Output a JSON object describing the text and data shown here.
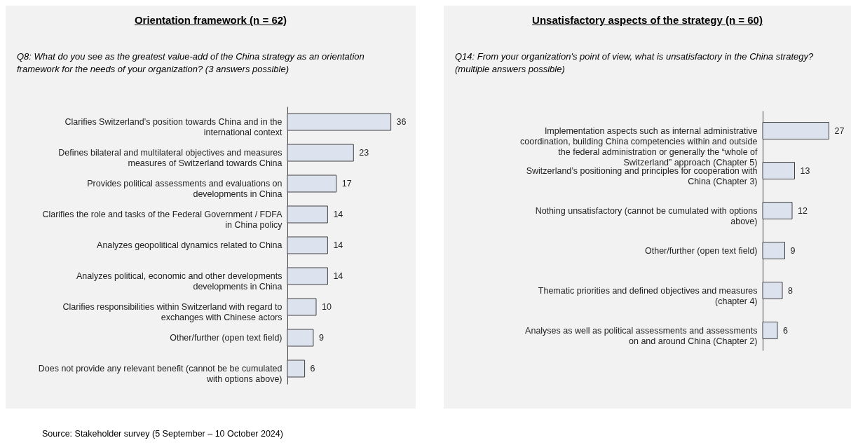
{
  "chart_data": [
    {
      "type": "bar",
      "orientation": "horizontal",
      "title": "Orientation framework (n = 62)",
      "subtitle": "Q8: What do you see as the greatest value-add of the China strategy as an orientation framework for the needs of your organization? (3 answers possible)",
      "categories": [
        "Clarifies Switzerland’s position towards China and in the international context",
        "Defines bilateral and multilateral objectives and measures measures of Switzerland towards China",
        "Provides political assessments and evaluations on developments in China",
        "Clarifies the role and tasks of the Federal Government / FDFA in China policy",
        "Analyzes geopolitical dynamics related to China",
        "Analyzes political, economic and other developments developments in China",
        "Clarifies responsibilities within Switzerland with regard to exchanges with Chinese actors",
        "Other/further (open text field)",
        "Does not provide any relevant benefit (cannot be be cumulated with options above)"
      ],
      "values": [
        36,
        23,
        17,
        14,
        14,
        14,
        10,
        9,
        6
      ],
      "color": "#dce3ee",
      "data_labels": true,
      "tick_labels": "y",
      "annotations": [
        "Source: Stakeholder survey (5 September – 10 October 2024)"
      ]
    },
    {
      "type": "bar",
      "orientation": "horizontal",
      "title": "Unsatisfactory aspects of the strategy (n = 60)",
      "subtitle": "Q14: From your organization's point of view, what is unsatisfactory in the China strategy? (multiple answers possible)",
      "categories": [
        "Implementation aspects such as internal administrative coordination, building China competencies within and outside the federal administration or generally the “whole of Switzerland” approach (Chapter 5)",
        "Switzerland’s positioning and principles for cooperation with China (Chapter 3)",
        "Nothing unsatisfactory (cannot be cumulated with options above)",
        "Other/further (open text field)",
        "Thematic priorities and defined objectives and measures (chapter 4)",
        "Analyses as well as political assessments and assessments on and around China (Chapter 2)"
      ],
      "values": [
        27,
        13,
        12,
        9,
        8,
        6
      ],
      "color": "#dce3ee",
      "data_labels": true,
      "tick_labels": "y"
    }
  ]
}
